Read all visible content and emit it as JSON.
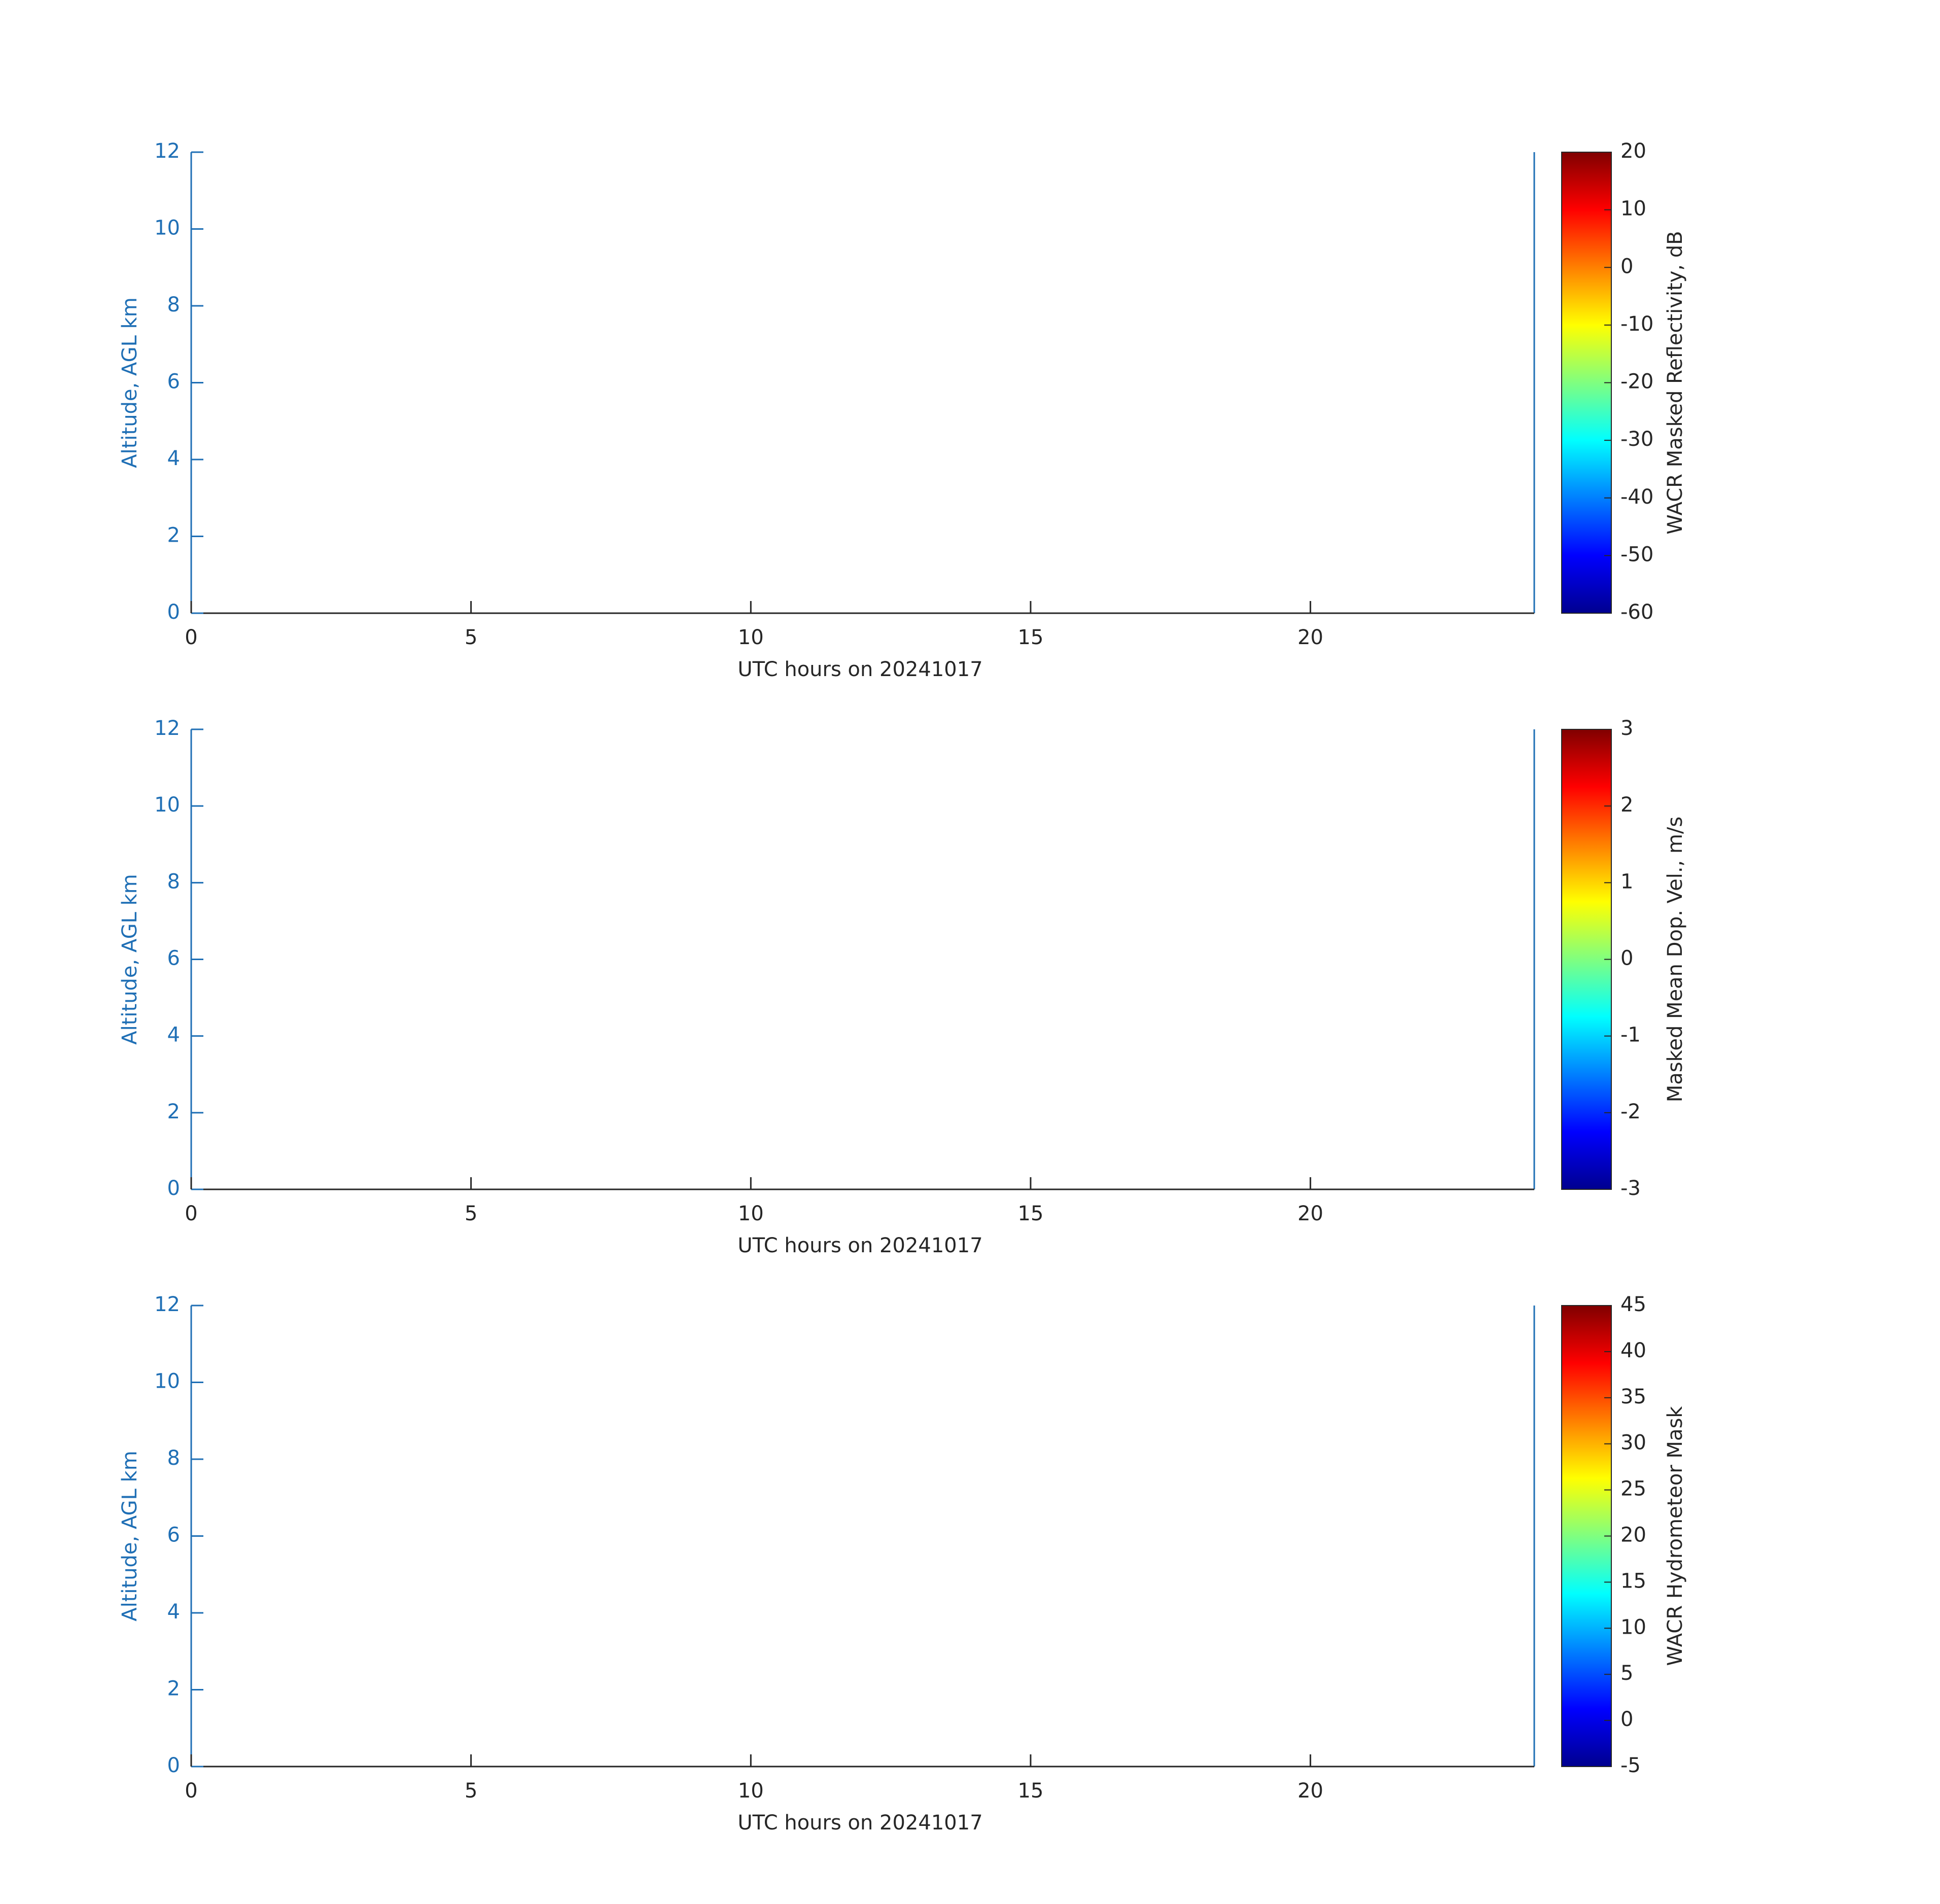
{
  "chart_data": [
    {
      "type": "heatmap",
      "xlabel": "UTC hours on 20241017",
      "ylabel": "Altitude, AGL km",
      "xlim": [
        0,
        24
      ],
      "xticks": [
        0,
        5,
        10,
        15,
        20
      ],
      "ylim": [
        0,
        12
      ],
      "yticks": [
        0,
        2,
        4,
        6,
        8,
        10,
        12
      ],
      "colormap": "jet",
      "colorbar_label": "WACR Masked Reflectivity, dB",
      "clim": [
        -60,
        20
      ],
      "cticks": [
        -60,
        -50,
        -40,
        -30,
        -20,
        -10,
        0,
        10,
        20
      ]
    },
    {
      "type": "heatmap",
      "xlabel": "UTC hours on 20241017",
      "ylabel": "Altitude, AGL km",
      "xlim": [
        0,
        24
      ],
      "xticks": [
        0,
        5,
        10,
        15,
        20
      ],
      "ylim": [
        0,
        12
      ],
      "yticks": [
        0,
        2,
        4,
        6,
        8,
        10,
        12
      ],
      "colormap": "jet",
      "colorbar_label": "Masked Mean Dop. Vel., m/s",
      "clim": [
        -3,
        3
      ],
      "cticks": [
        -3,
        -2,
        -1,
        0,
        1,
        2,
        3
      ]
    },
    {
      "type": "heatmap",
      "xlabel": "UTC hours on 20241017",
      "ylabel": "Altitude, AGL km",
      "xlim": [
        0,
        24
      ],
      "xticks": [
        0,
        5,
        10,
        15,
        20
      ],
      "ylim": [
        0,
        12
      ],
      "yticks": [
        0,
        2,
        4,
        6,
        8,
        10,
        12
      ],
      "colormap": "jet",
      "colorbar_label": "WACR Hydrometeor Mask",
      "clim": [
        -5,
        45
      ],
      "cticks": [
        -5,
        0,
        5,
        10,
        15,
        20,
        25,
        30,
        35,
        40,
        45
      ]
    }
  ]
}
